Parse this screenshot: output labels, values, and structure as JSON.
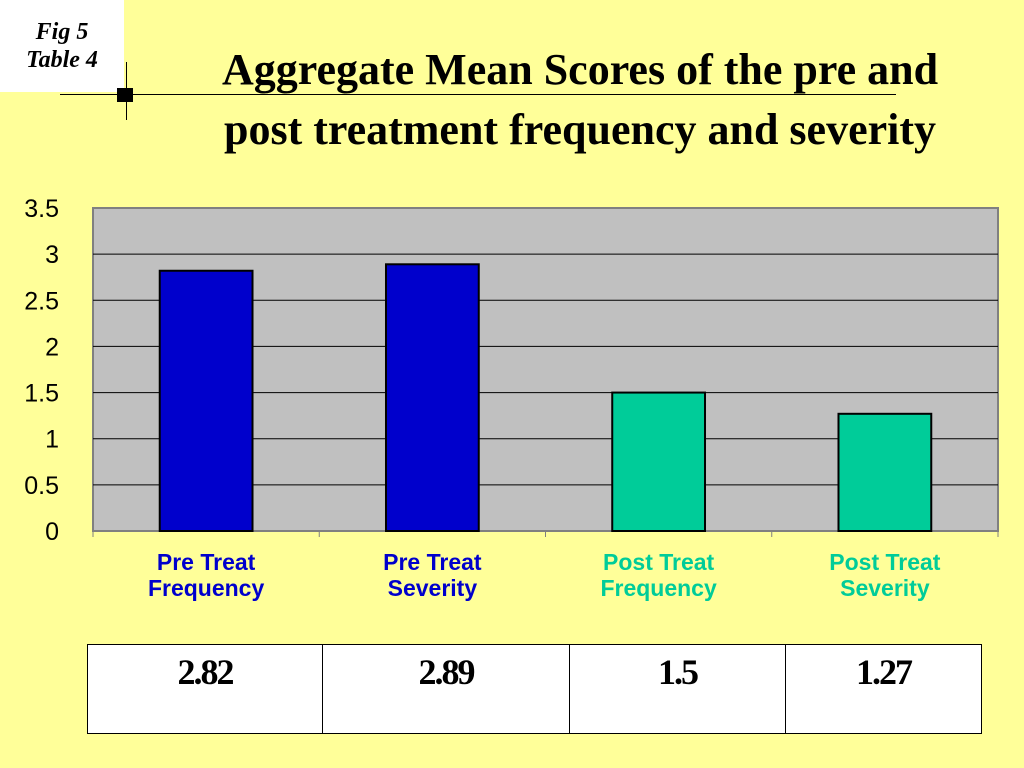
{
  "fig_label": {
    "line1": "Fig 5",
    "line2": "Table 4"
  },
  "title": {
    "line1": "Aggregate Mean Scores of the pre and",
    "line2": "post treatment frequency and severity"
  },
  "chart_data": {
    "type": "bar",
    "categories": [
      [
        "Pre Treat",
        "Frequency"
      ],
      [
        "Pre Treat",
        "Severity"
      ],
      [
        "Post Treat",
        "Frequency"
      ],
      [
        "Post Treat",
        "Severity"
      ]
    ],
    "values": [
      2.82,
      2.89,
      1.5,
      1.27
    ],
    "bar_colors": [
      "#0000CC",
      "#0000CC",
      "#00CC99",
      "#00CC99"
    ],
    "label_colors": [
      "#0000CC",
      "#0000CC",
      "#00CC99",
      "#00CC99"
    ],
    "ylim": [
      0,
      3.5
    ],
    "yticks": [
      "0",
      "0.5",
      "1",
      "1.5",
      "2",
      "2.5",
      "3",
      "3.5"
    ],
    "grid": true,
    "plot_background": "#C0C0C0",
    "xlabel": "",
    "ylabel": "",
    "title": ""
  },
  "values_table": [
    "2.82",
    "2.89",
    "1.5",
    "1.27"
  ]
}
